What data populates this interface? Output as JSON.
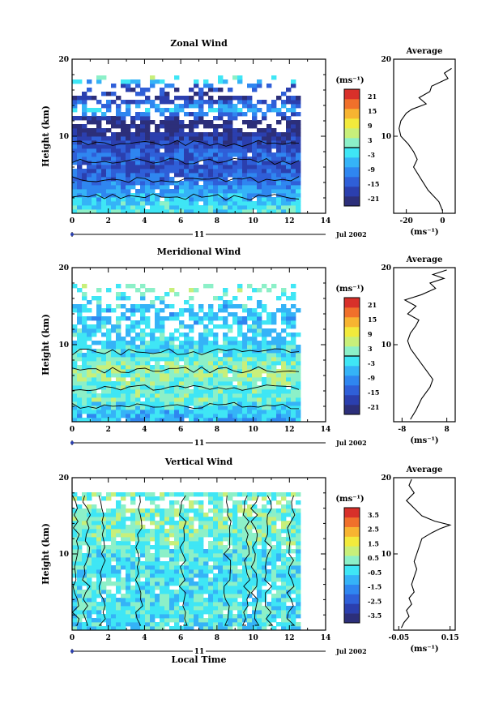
{
  "chart_data": [
    {
      "type": "heatmap",
      "title": "Zonal Wind",
      "ylabel": "Height (km)",
      "xlim": [
        0,
        14
      ],
      "ylim": [
        0,
        20
      ],
      "x_ticks": [
        "0",
        "2",
        "4",
        "6",
        "8",
        "10",
        "12",
        "14"
      ],
      "y_ticks": [
        "10",
        "20"
      ],
      "time_label": "11",
      "date_label": "Jul 2002",
      "colorbar": {
        "unit": "(ms⁻¹)",
        "ticks": [
          "21",
          "15",
          "9",
          "3",
          "-3",
          "-9",
          "-15",
          "-21"
        ],
        "range": [
          -24,
          24
        ]
      },
      "data_extent_x": [
        0,
        12.6
      ],
      "profile_by_height": [
        {
          "h": 0.5,
          "v": -1
        },
        {
          "h": 1.5,
          "v": -4
        },
        {
          "h": 3,
          "v": -8
        },
        {
          "h": 4.5,
          "v": -12
        },
        {
          "h": 6,
          "v": -16
        },
        {
          "h": 7.5,
          "v": -13
        },
        {
          "h": 9,
          "v": -16
        },
        {
          "h": 10.5,
          "v": -21
        },
        {
          "h": 12,
          "v": -23
        },
        {
          "h": 13.5,
          "v": -5
        },
        {
          "h": 15,
          "v": -20
        },
        {
          "h": 16.5,
          "v": -15
        },
        {
          "h": 17.5,
          "v": 2
        }
      ],
      "average": {
        "title": "Average",
        "xlabel": "(ms⁻¹)",
        "x_ticks": [
          "-20",
          "0"
        ],
        "xlim": [
          -27,
          7
        ],
        "y_ticks": [
          "10",
          "20"
        ],
        "profile": [
          {
            "h": 0.3,
            "v": 0
          },
          {
            "h": 1.5,
            "v": -2
          },
          {
            "h": 3,
            "v": -8
          },
          {
            "h": 4.5,
            "v": -12
          },
          {
            "h": 6,
            "v": -16
          },
          {
            "h": 7,
            "v": -14
          },
          {
            "h": 8,
            "v": -16
          },
          {
            "h": 9,
            "v": -19
          },
          {
            "h": 10,
            "v": -23
          },
          {
            "h": 11,
            "v": -24
          },
          {
            "h": 12,
            "v": -23
          },
          {
            "h": 13,
            "v": -20
          },
          {
            "h": 13.5,
            "v": -17
          },
          {
            "h": 14.2,
            "v": -9
          },
          {
            "h": 15,
            "v": -13
          },
          {
            "h": 15.8,
            "v": -7
          },
          {
            "h": 16.5,
            "v": -6
          },
          {
            "h": 17.5,
            "v": 3
          },
          {
            "h": 18.2,
            "v": 1
          },
          {
            "h": 18.8,
            "v": 5
          }
        ]
      }
    },
    {
      "type": "heatmap",
      "title": "Meridional Wind",
      "ylabel": "Height (km)",
      "xlim": [
        0,
        14
      ],
      "ylim": [
        0,
        20
      ],
      "x_ticks": [
        "0",
        "2",
        "4",
        "6",
        "8",
        "10",
        "12",
        "14"
      ],
      "y_ticks": [
        "10",
        "20"
      ],
      "time_label": "11",
      "date_label": "Jul 2002",
      "colorbar": {
        "unit": "(ms⁻¹)",
        "ticks": [
          "21",
          "15",
          "9",
          "3",
          "-3",
          "-9",
          "-15",
          "-21"
        ],
        "range": [
          -24,
          24
        ]
      },
      "data_extent_x": [
        0,
        12.6
      ],
      "profile_by_height": [
        {
          "h": 0.5,
          "v": -6
        },
        {
          "h": 1.5,
          "v": -4
        },
        {
          "h": 3,
          "v": 1
        },
        {
          "h": 4.5,
          "v": 0
        },
        {
          "h": 6,
          "v": 3
        },
        {
          "h": 7.5,
          "v": 2
        },
        {
          "h": 9,
          "v": -2
        },
        {
          "h": 10.5,
          "v": -4
        },
        {
          "h": 12,
          "v": -3
        },
        {
          "h": 13.5,
          "v": -5
        },
        {
          "h": 15,
          "v": -4
        },
        {
          "h": 16.5,
          "v": 0
        },
        {
          "h": 17.5,
          "v": 1
        }
      ],
      "average": {
        "title": "Average",
        "xlabel": "(ms⁻¹)",
        "x_ticks": [
          "-8",
          "8"
        ],
        "xlim": [
          -11,
          11
        ],
        "y_ticks": [
          "10",
          "20"
        ],
        "profile": [
          {
            "h": 0.3,
            "v": -5
          },
          {
            "h": 1.5,
            "v": -3
          },
          {
            "h": 3,
            "v": -1
          },
          {
            "h": 4.5,
            "v": 2
          },
          {
            "h": 5.5,
            "v": 3
          },
          {
            "h": 6.5,
            "v": 1
          },
          {
            "h": 7.5,
            "v": -1
          },
          {
            "h": 8.5,
            "v": -3
          },
          {
            "h": 9.5,
            "v": -5
          },
          {
            "h": 10.5,
            "v": -6
          },
          {
            "h": 11.5,
            "v": -5
          },
          {
            "h": 12.5,
            "v": -3
          },
          {
            "h": 13.2,
            "v": -2
          },
          {
            "h": 14,
            "v": -6
          },
          {
            "h": 15,
            "v": -3
          },
          {
            "h": 15.8,
            "v": -7
          },
          {
            "h": 16.5,
            "v": -1
          },
          {
            "h": 17.3,
            "v": 4
          },
          {
            "h": 18,
            "v": 2
          },
          {
            "h": 18.6,
            "v": 7
          },
          {
            "h": 19.1,
            "v": 3
          },
          {
            "h": 19.7,
            "v": 8
          }
        ]
      }
    },
    {
      "type": "heatmap",
      "title": "Vertical Wind",
      "ylabel": "Height (km)",
      "xlabel": "Local Time",
      "xlim": [
        0,
        14
      ],
      "ylim": [
        0,
        20
      ],
      "x_ticks": [
        "0",
        "2",
        "4",
        "6",
        "8",
        "10",
        "12",
        "14"
      ],
      "y_ticks": [
        "10",
        "20"
      ],
      "time_label": "11",
      "date_label": "Jul 2002",
      "colorbar": {
        "unit": "(ms⁻¹)",
        "ticks": [
          "3.5",
          "2.5",
          "1.5",
          "0.5",
          "-0.5",
          "-1.5",
          "-2.5",
          "-3.5"
        ],
        "range": [
          -4,
          4
        ]
      },
      "data_extent_x": [
        0,
        12.6
      ],
      "profile_by_height": [
        {
          "h": 0.5,
          "v": -0.4
        },
        {
          "h": 2,
          "v": -0.2
        },
        {
          "h": 4,
          "v": -0.3
        },
        {
          "h": 6,
          "v": -0.2
        },
        {
          "h": 8,
          "v": -0.3
        },
        {
          "h": 10,
          "v": -0.2
        },
        {
          "h": 12,
          "v": 0.2
        },
        {
          "h": 14,
          "v": 0.3
        },
        {
          "h": 16,
          "v": 0.2
        },
        {
          "h": 18,
          "v": 0.1
        }
      ],
      "average": {
        "title": "Average",
        "xlabel": "(ms⁻¹)",
        "x_ticks": [
          "-0.05",
          "0.15"
        ],
        "xlim": [
          -0.07,
          0.17
        ],
        "y_ticks": [
          "10",
          "20"
        ],
        "profile": [
          {
            "h": 0.3,
            "v": -0.04
          },
          {
            "h": 1,
            "v": -0.03
          },
          {
            "h": 1.8,
            "v": -0.01
          },
          {
            "h": 2.6,
            "v": -0.02
          },
          {
            "h": 3.4,
            "v": 0.0
          },
          {
            "h": 4.2,
            "v": -0.01
          },
          {
            "h": 5,
            "v": 0.01
          },
          {
            "h": 6,
            "v": 0.0
          },
          {
            "h": 7,
            "v": 0.01
          },
          {
            "h": 8,
            "v": 0.02
          },
          {
            "h": 9,
            "v": 0.01
          },
          {
            "h": 10,
            "v": 0.02
          },
          {
            "h": 11,
            "v": 0.03
          },
          {
            "h": 12,
            "v": 0.04
          },
          {
            "h": 12.8,
            "v": 0.08
          },
          {
            "h": 13.3,
            "v": 0.11
          },
          {
            "h": 13.8,
            "v": 0.15
          },
          {
            "h": 14.3,
            "v": 0.09
          },
          {
            "h": 15,
            "v": 0.04
          },
          {
            "h": 16,
            "v": 0.01
          },
          {
            "h": 17,
            "v": -0.02
          },
          {
            "h": 18,
            "v": 0.01
          },
          {
            "h": 19,
            "v": -0.01
          },
          {
            "h": 19.8,
            "v": 0.0
          }
        ]
      }
    }
  ]
}
